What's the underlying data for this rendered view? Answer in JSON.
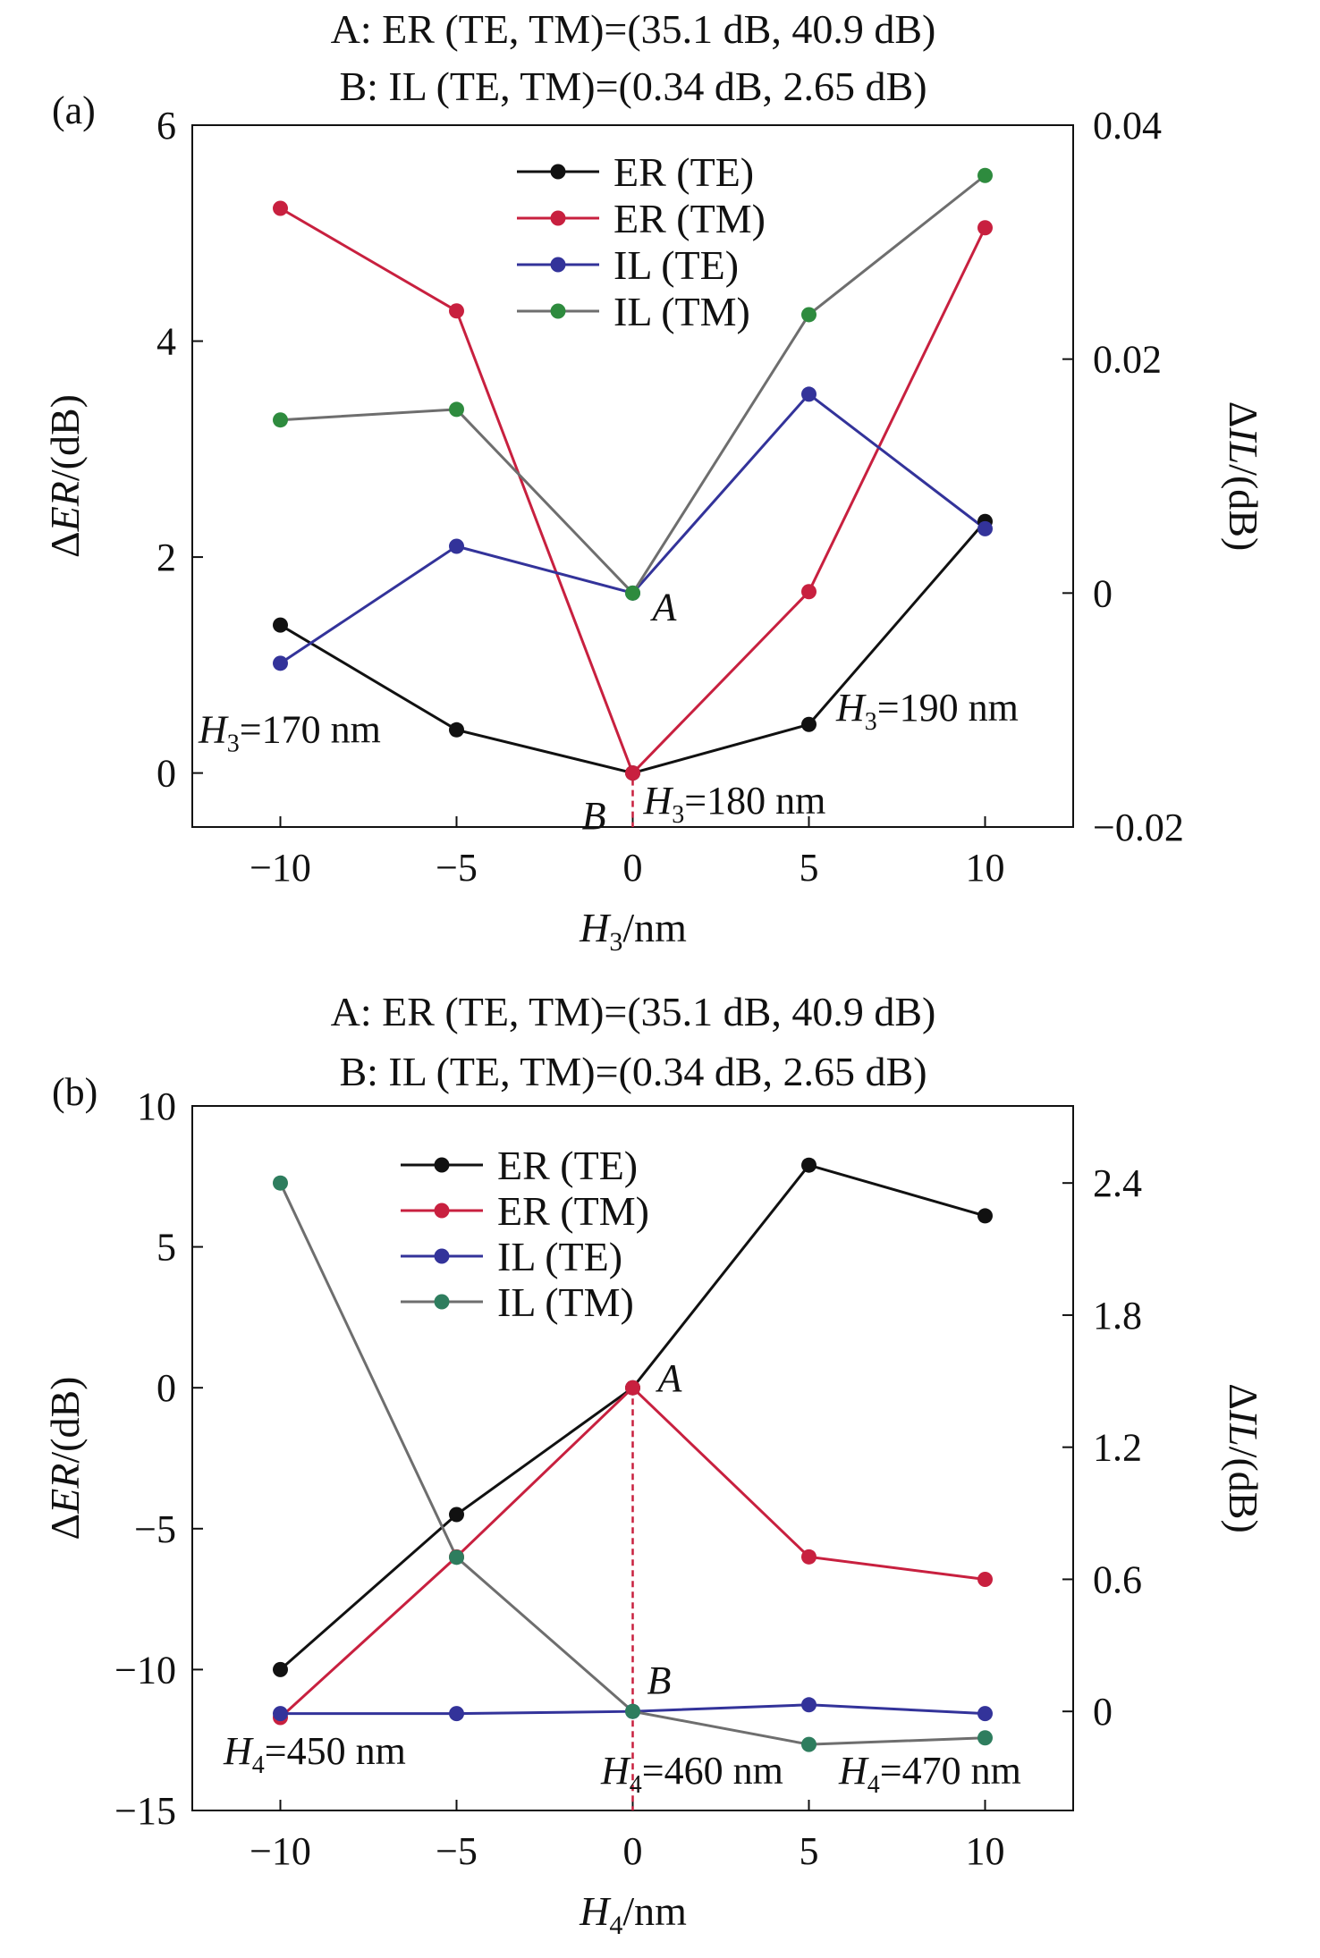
{
  "colors": {
    "er_te": "#111111",
    "er_tm": "#c8203f",
    "il_te": "#33339a",
    "il_tm": "#6e6e6e",
    "il_tm_marker": "#2e8b3e",
    "il_tm_marker_b": "#2e7d5e"
  },
  "chart_data": [
    {
      "panel": "(a)",
      "type": "line",
      "title_lines": [
        "A: ER (TE, TM)=(35.1 dB, 40.9 dB)",
        "B: IL (TE, TM)=(0.34 dB, 2.65 dB)"
      ],
      "x": [
        -10,
        -5,
        0,
        5,
        10
      ],
      "xlim": [
        -12.5,
        12.5
      ],
      "xticks": [
        -10,
        -5,
        0,
        5,
        10
      ],
      "xtick_labels": [
        "−10",
        "−5",
        "0",
        "5",
        "10"
      ],
      "xlabel": {
        "symbol": "H",
        "sub": "3",
        "rest": "/nm"
      },
      "ylim": [
        -0.5,
        6
      ],
      "yticks": [
        0,
        2,
        4,
        6
      ],
      "ytick_labels": [
        "0",
        "2",
        "4",
        "6"
      ],
      "ylabel": {
        "pre": "Δ",
        "sym": "ER",
        "post": "/(dB)"
      },
      "y2lim": [
        -0.02,
        0.04
      ],
      "y2ticks": [
        -0.02,
        0,
        0.02,
        0.04
      ],
      "y2tick_labels": [
        "−0.02",
        "0",
        "0.02",
        "0.04"
      ],
      "y2label": {
        "pre": "Δ",
        "sym": "IL",
        "post": "/(dB)"
      },
      "legend_position": "top-center",
      "series": [
        {
          "name": "ER (TE)",
          "axis": "left",
          "color_key": "er_te",
          "marker_key": "er_te",
          "values": [
            1.37,
            0.4,
            0.0,
            0.45,
            2.33
          ]
        },
        {
          "name": "ER (TM)",
          "axis": "left",
          "color_key": "er_tm",
          "marker_key": "er_tm",
          "values": [
            5.23,
            4.28,
            0.0,
            1.68,
            5.05
          ]
        },
        {
          "name": "IL (TE)",
          "axis": "right",
          "color_key": "il_te",
          "marker_key": "il_te",
          "values": [
            -0.006,
            0.004,
            0.0,
            0.017,
            0.0055
          ]
        },
        {
          "name": "IL (TM)",
          "axis": "right",
          "color_key": "il_tm",
          "marker_key": "il_tm_marker",
          "values": [
            0.0148,
            0.0157,
            0.0,
            0.0238,
            0.0357
          ]
        }
      ],
      "point_labels": [
        {
          "text": "A",
          "italic": true,
          "x": 0,
          "y": 1.65,
          "axis": "left"
        },
        {
          "text": "B",
          "italic": true,
          "x": 0,
          "y": -0.2,
          "axis": "left"
        }
      ],
      "param_labels": [
        {
          "sym": "H",
          "sub": "3",
          "rest": "=170 nm",
          "x": -10,
          "y": 0.35,
          "axis": "left"
        },
        {
          "sym": "H",
          "sub": "3",
          "rest": "=180 nm",
          "x": 0,
          "y": -0.2,
          "axis": "left"
        },
        {
          "sym": "H",
          "sub": "3",
          "rest": "=190 nm",
          "x": 10,
          "y": 0.55,
          "axis": "left"
        }
      ]
    },
    {
      "panel": "(b)",
      "type": "line",
      "title_lines": [
        "A: ER (TE, TM)=(35.1 dB, 40.9 dB)",
        "B: IL (TE, TM)=(0.34 dB, 2.65 dB)"
      ],
      "x": [
        -10,
        -5,
        0,
        5,
        10
      ],
      "xlim": [
        -12.5,
        12.5
      ],
      "xticks": [
        -10,
        -5,
        0,
        5,
        10
      ],
      "xtick_labels": [
        "−10",
        "−5",
        "0",
        "5",
        "10"
      ],
      "xlabel": {
        "symbol": "H",
        "sub": "4",
        "rest": "/nm"
      },
      "ylim": [
        -15,
        10
      ],
      "yticks": [
        -15,
        -10,
        -5,
        0,
        5,
        10
      ],
      "ytick_labels": [
        "−15",
        "−10",
        "−5",
        "0",
        "5",
        "10"
      ],
      "ylabel": {
        "pre": "Δ",
        "sym": "ER",
        "post": "/(dB)"
      },
      "y2lim": [
        -0.45,
        2.75
      ],
      "y2ticks": [
        0,
        0.6,
        1.2,
        1.8,
        2.4
      ],
      "y2tick_labels": [
        "0",
        "0.6",
        "1.2",
        "1.8",
        "2.4"
      ],
      "y2label": {
        "pre": "Δ",
        "sym": "IL",
        "post": "/(dB)"
      },
      "legend_position": "top-center",
      "series": [
        {
          "name": "ER (TE)",
          "axis": "left",
          "color_key": "er_te",
          "marker_key": "er_te",
          "values": [
            -10.0,
            -4.5,
            0.0,
            7.9,
            6.1
          ]
        },
        {
          "name": "ER (TM)",
          "axis": "left",
          "color_key": "er_tm",
          "marker_key": "er_tm",
          "values": [
            -11.7,
            -6.0,
            0.0,
            -6.0,
            -6.8
          ]
        },
        {
          "name": "IL (TE)",
          "axis": "right",
          "color_key": "il_te",
          "marker_key": "il_te",
          "values": [
            -0.01,
            -0.01,
            0.0,
            0.03,
            -0.01
          ]
        },
        {
          "name": "IL (TM)",
          "axis": "right",
          "color_key": "il_tm",
          "marker_key": "il_tm_marker_b",
          "values": [
            2.4,
            0.7,
            0.0,
            -0.15,
            -0.12
          ]
        }
      ],
      "point_labels": [
        {
          "text": "A",
          "italic": true,
          "x": 0,
          "y": 0.0,
          "axis": "left"
        },
        {
          "text": "B",
          "italic": true,
          "x": 0,
          "y": 0.0,
          "axis": "right"
        }
      ],
      "param_labels": [
        {
          "sym": "H",
          "sub": "4",
          "rest": "=450 nm",
          "x": -10,
          "y": -13.2,
          "axis": "left"
        },
        {
          "sym": "H",
          "sub": "4",
          "rest": "=460 nm",
          "x": 0,
          "y": -13.5,
          "axis": "left"
        },
        {
          "sym": "H",
          "sub": "4",
          "rest": "=470 nm",
          "x": 10,
          "y": -13.5,
          "axis": "left"
        }
      ]
    }
  ]
}
